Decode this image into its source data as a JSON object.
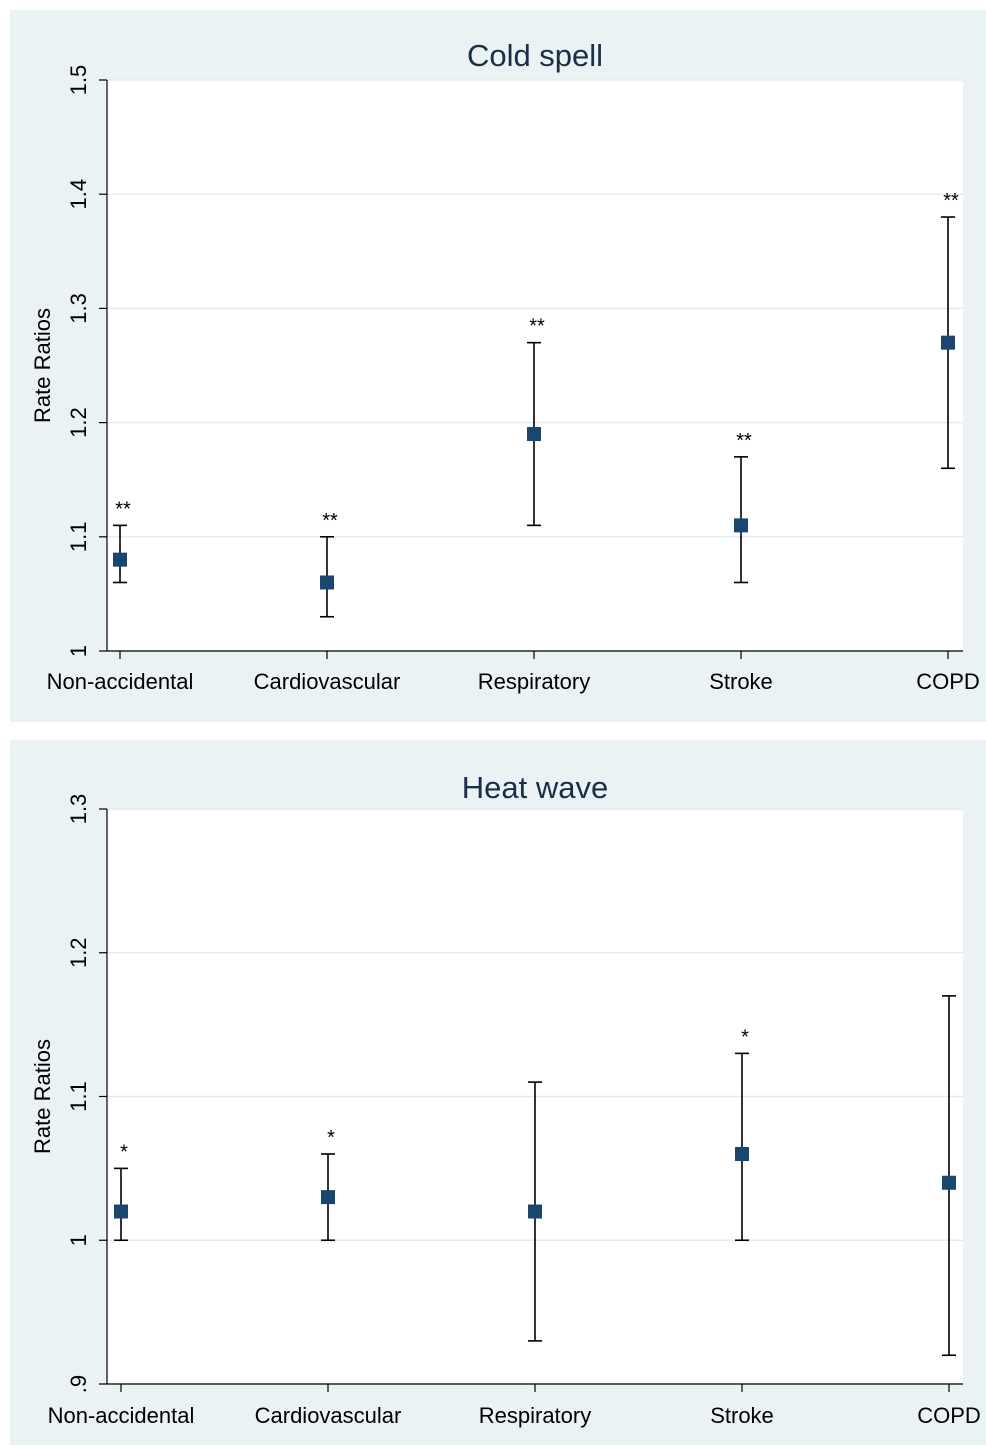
{
  "chart_data": [
    {
      "type": "scatter",
      "title": "Cold spell",
      "ylabel": "Rate Ratios",
      "xlabel": "",
      "categories": [
        "Non-accidental",
        "Cardiovascular",
        "Respiratory",
        "Stroke",
        "COPD"
      ],
      "series": [
        {
          "estimates": [
            1.08,
            1.06,
            1.19,
            1.11,
            1.27
          ],
          "ci_lower": [
            1.06,
            1.03,
            1.11,
            1.06,
            1.16
          ],
          "ci_upper": [
            1.11,
            1.1,
            1.27,
            1.17,
            1.38
          ]
        }
      ],
      "annotations": [
        "**",
        "**",
        "**",
        "**",
        "**"
      ],
      "yticks": [
        "1",
        "1.1",
        "1.2",
        "1.3",
        "1.4",
        "1.5"
      ],
      "ylim": [
        1.0,
        1.5
      ],
      "grid": true,
      "marker_color": "#1a476f"
    },
    {
      "type": "scatter",
      "title": "Heat wave",
      "ylabel": "Rate Ratios",
      "xlabel": "",
      "categories": [
        "Non-accidental",
        "Cardiovascular",
        "Respiratory",
        "Stroke",
        "COPD"
      ],
      "series": [
        {
          "estimates": [
            1.02,
            1.03,
            1.02,
            1.06,
            1.04
          ],
          "ci_lower": [
            1.0,
            1.0,
            0.93,
            1.0,
            0.92
          ],
          "ci_upper": [
            1.05,
            1.06,
            1.11,
            1.13,
            1.17
          ]
        }
      ],
      "annotations": [
        "*",
        "*",
        "",
        "*",
        ""
      ],
      "yticks": [
        ".9",
        "1",
        "1.1",
        "1.2",
        "1.3"
      ],
      "ylim": [
        0.9,
        1.3
      ],
      "grid": true,
      "marker_color": "#1a476f"
    }
  ]
}
